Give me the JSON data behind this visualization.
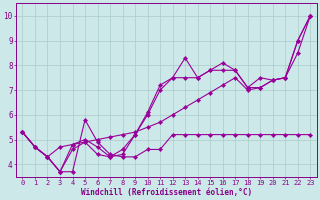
{
  "xlabel": "Windchill (Refroidissement éolien,°C)",
  "background_color": "#cce8e8",
  "line_color": "#990099",
  "grid_color": "#aacccc",
  "series": [
    [
      5.3,
      4.7,
      4.3,
      4.7,
      4.8,
      4.9,
      5.0,
      5.1,
      5.2,
      5.3,
      5.5,
      5.7,
      6.0,
      6.3,
      6.6,
      6.9,
      7.2,
      7.5,
      7.0,
      7.1,
      7.4,
      7.5,
      9.0,
      10.0
    ],
    [
      5.3,
      4.7,
      4.3,
      3.7,
      4.6,
      4.9,
      4.4,
      4.3,
      4.4,
      5.2,
      6.0,
      7.0,
      7.5,
      8.3,
      7.5,
      7.8,
      8.1,
      7.8,
      7.1,
      7.1,
      7.4,
      7.5,
      8.5,
      10.0
    ],
    [
      5.3,
      4.7,
      4.3,
      3.7,
      4.8,
      5.0,
      4.7,
      4.3,
      4.6,
      5.2,
      6.1,
      7.2,
      7.5,
      7.5,
      7.5,
      7.8,
      7.8,
      7.8,
      7.1,
      7.5,
      7.4,
      7.5,
      9.0,
      10.0
    ],
    [
      5.3,
      4.7,
      4.3,
      3.7,
      3.7,
      5.8,
      4.9,
      4.4,
      4.3,
      4.3,
      4.6,
      4.6,
      5.2,
      5.2,
      5.2,
      5.2,
      5.2,
      5.2,
      5.2,
      5.2,
      5.2,
      5.2,
      5.2,
      5.2
    ]
  ],
  "x": [
    0,
    1,
    2,
    3,
    4,
    5,
    6,
    7,
    8,
    9,
    10,
    11,
    12,
    13,
    14,
    15,
    16,
    17,
    18,
    19,
    20,
    21,
    22,
    23
  ],
  "xlim": [
    -0.5,
    23.5
  ],
  "ylim": [
    3.5,
    10.5
  ],
  "yticks": [
    4,
    5,
    6,
    7,
    8,
    9,
    10
  ],
  "marker": "D",
  "markersize": 2.2,
  "linewidth": 0.8,
  "font_color": "#880088",
  "tick_fontsize": 5.0,
  "xlabel_fontsize": 5.5
}
